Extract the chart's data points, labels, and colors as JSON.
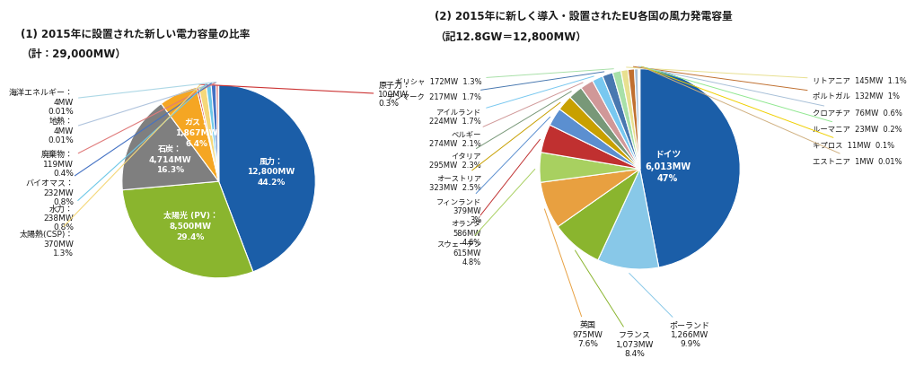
{
  "chart1_title": "(1) 2015年に設置された新しい電力容量の比率",
  "chart1_subtitle": "（計：29,000MW）",
  "chart2_title": "(2) 2015年に新しく導入・設置されたEU各国の風力発電容量",
  "chart2_subtitle": "（記12.8GW＝12,800MW）",
  "chart1_values": [
    12800,
    8500,
    4714,
    1867,
    100,
    370,
    238,
    232,
    119,
    4,
    4
  ],
  "chart1_colors": [
    "#1B5EA8",
    "#8AB52E",
    "#7F7F7F",
    "#F5A623",
    "#CC3333",
    "#F5D87A",
    "#6FC9E8",
    "#4472C4",
    "#E07B7B",
    "#B0C4DE",
    "#ADD8E6"
  ],
  "chart1_internal": [
    {
      "idx": 0,
      "text": "風力：\n12,800MW\n44.2%"
    },
    {
      "idx": 1,
      "text": "太陽光 (PV)：\n8,500MW\n29.4%"
    },
    {
      "idx": 2,
      "text": "石炭：\n4,714MW\n16.3%"
    },
    {
      "idx": 3,
      "text": "ガス：\n1,867MW\n6.4%"
    }
  ],
  "chart1_external_right": [
    {
      "idx": 4,
      "text": "原子力：\n100MW\n0.3%",
      "color": "#CC3333"
    }
  ],
  "chart1_external_left": [
    {
      "idx": 10,
      "text": "海洋エネルギー：\n4MW\n0.01%",
      "color": "#ADD8E6"
    },
    {
      "idx": 9,
      "text": "地熱：\n4MW\n0.01%",
      "color": "#B0C4DE"
    },
    {
      "idx": 8,
      "text": "廃棄物：\n119MW\n0.4%",
      "color": "#E07B7B"
    },
    {
      "idx": 7,
      "text": "バイオマス：\n232MW\n0.8%",
      "color": "#4472C4"
    },
    {
      "idx": 6,
      "text": "水力：\n238MW\n0.8%",
      "color": "#6FC9E8"
    },
    {
      "idx": 5,
      "text": "太陽熱(CSP)：\n370MW\n1.3%",
      "color": "#F5D87A"
    }
  ],
  "chart2_values": [
    6013,
    1266,
    1073,
    975,
    615,
    586,
    379,
    323,
    295,
    274,
    224,
    217,
    172,
    145,
    132,
    76,
    23,
    11,
    1
  ],
  "chart2_colors": [
    "#1B5EA8",
    "#88C8E8",
    "#8AB52E",
    "#E8A040",
    "#A8D060",
    "#C03030",
    "#5B8FD0",
    "#C8A000",
    "#789878",
    "#D09898",
    "#78C8F0",
    "#4878B0",
    "#A8E0A8",
    "#E8E090",
    "#C07030",
    "#A8C0D8",
    "#90E890",
    "#F0D000",
    "#D0B080"
  ],
  "chart2_internal": [
    {
      "idx": 0,
      "text": "ドイツ\n6,013MW\n47%",
      "r": 0.3
    }
  ],
  "chart2_external_left": [
    {
      "idx": 12,
      "text": "ギリシャ  172MW  1.3%"
    },
    {
      "idx": 11,
      "text": "デンマーク  217MW  1.7%"
    },
    {
      "idx": 10,
      "text": "アイルランド\n224MW  1.7%"
    },
    {
      "idx": 9,
      "text": "ベルギー\n274MW  2.1%"
    },
    {
      "idx": 8,
      "text": "イタリア\n295MW  2.3%"
    },
    {
      "idx": 7,
      "text": "オーストリア\n323MW  2.5%"
    },
    {
      "idx": 6,
      "text": "フィンランド\n379MW\n3%"
    },
    {
      "idx": 5,
      "text": "オランダ\n586MW\n4.6%"
    },
    {
      "idx": 4,
      "text": "スウェーデン\n615MW\n4.8%"
    }
  ],
  "chart2_external_right": [
    {
      "idx": 13,
      "text": "リトアニア  145MW  1.1%"
    },
    {
      "idx": 14,
      "text": "ポルトガル  132MW  1%"
    },
    {
      "idx": 15,
      "text": "クロアチア  76MW  0.6%"
    },
    {
      "idx": 16,
      "text": "ルーマニア  23MW  0.2%"
    },
    {
      "idx": 17,
      "text": "キプロス  11MW  0.1%"
    },
    {
      "idx": 18,
      "text": "エストニア  1MW  0.01%"
    }
  ],
  "chart2_external_bottom": [
    {
      "idx": 3,
      "text": "英国\n975MW\n7.6%"
    },
    {
      "idx": 2,
      "text": "フランス\n1,073MW\n8.4%"
    },
    {
      "idx": 1,
      "text": "ポーランド\n1,266MW\n9.9%"
    }
  ],
  "bg_color": "#FFFFFF"
}
